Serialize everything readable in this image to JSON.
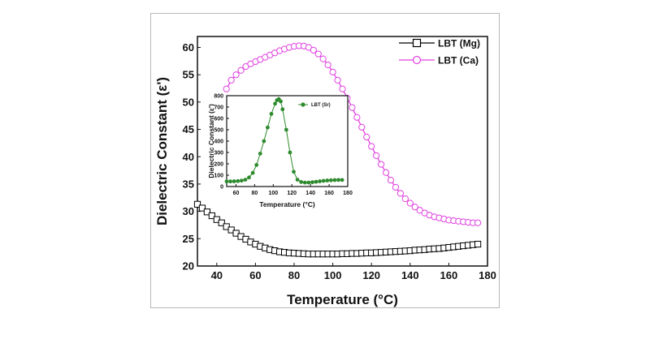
{
  "chart_data": [
    {
      "type": "line",
      "xlabel": "Temperature (°C)",
      "ylabel": "Dielectric Constant (ε')",
      "xlim": [
        30,
        180
      ],
      "ylim": [
        20,
        62
      ],
      "xticks": [
        "40",
        "60",
        "80",
        "100",
        "120",
        "140",
        "160",
        "180"
      ],
      "yticks": [
        "20",
        "25",
        "30",
        "35",
        "40",
        "45",
        "50",
        "55",
        "60"
      ],
      "legend_position": "top-right",
      "series": [
        {
          "name": "LBT (Mg)",
          "color": "#000000",
          "marker": "square",
          "x": [
            30,
            32.5,
            35,
            37.5,
            40,
            42.5,
            45,
            47.5,
            50,
            52.5,
            55,
            57.5,
            60,
            62.5,
            65,
            67.5,
            70,
            72.5,
            75,
            77.5,
            80,
            82.5,
            85,
            87.5,
            90,
            92.5,
            95,
            97.5,
            100,
            102.5,
            105,
            107.5,
            110,
            112.5,
            115,
            117.5,
            120,
            122.5,
            125,
            127.5,
            130,
            132.5,
            135,
            137.5,
            140,
            142.5,
            145,
            147.5,
            150,
            152.5,
            155,
            157.5,
            160,
            162.5,
            165,
            167.5,
            170,
            172.5,
            175
          ],
          "y": [
            31.3,
            30.6,
            29.9,
            29.2,
            28.5,
            27.9,
            27.2,
            26.6,
            26.0,
            25.4,
            24.9,
            24.4,
            24.0,
            23.6,
            23.3,
            23.0,
            22.8,
            22.6,
            22.5,
            22.4,
            22.35,
            22.3,
            22.25,
            22.2,
            22.2,
            22.2,
            22.2,
            22.2,
            22.2,
            22.2,
            22.25,
            22.25,
            22.3,
            22.3,
            22.35,
            22.4,
            22.4,
            22.45,
            22.5,
            22.55,
            22.6,
            22.65,
            22.7,
            22.75,
            22.8,
            22.9,
            22.95,
            23.0,
            23.1,
            23.15,
            23.2,
            23.3,
            23.4,
            23.5,
            23.6,
            23.7,
            23.8,
            23.9,
            24.0
          ]
        },
        {
          "name": "LBT (Ca)",
          "color": "#e040e0",
          "marker": "circle",
          "x": [
            45,
            47.5,
            50,
            52.5,
            55,
            57.5,
            60,
            62.5,
            65,
            67.5,
            70,
            72.5,
            75,
            77.5,
            80,
            82.5,
            85,
            87.5,
            90,
            92.5,
            95,
            97.5,
            100,
            102.5,
            105,
            107.5,
            110,
            112.5,
            115,
            117.5,
            120,
            122.5,
            125,
            127.5,
            130,
            132.5,
            135,
            137.5,
            140,
            142.5,
            145,
            147.5,
            150,
            152.5,
            155,
            157.5,
            160,
            162.5,
            165,
            167.5,
            170,
            172.5,
            175
          ],
          "y": [
            52.4,
            54.0,
            55.0,
            55.8,
            56.5,
            57.0,
            57.4,
            57.8,
            58.2,
            58.6,
            59.0,
            59.4,
            59.7,
            60.0,
            60.2,
            60.3,
            60.25,
            60.0,
            59.5,
            58.8,
            57.9,
            56.8,
            55.5,
            54.0,
            52.4,
            50.7,
            49.0,
            47.2,
            45.4,
            43.6,
            41.9,
            40.2,
            38.6,
            37.1,
            35.7,
            34.4,
            33.3,
            32.3,
            31.5,
            30.8,
            30.2,
            29.7,
            29.3,
            29.0,
            28.8,
            28.6,
            28.4,
            28.3,
            28.2,
            28.1,
            28.0,
            27.9,
            27.9
          ]
        }
      ]
    },
    {
      "type": "line",
      "position": "inset",
      "xlabel": "Temperature (°C)",
      "ylabel": "Dielectric Constant (ε')",
      "xlim": [
        50,
        180
      ],
      "ylim": [
        0,
        800
      ],
      "xticks": [
        "60",
        "80",
        "100",
        "120",
        "140",
        "160",
        "180"
      ],
      "yticks": [
        "0",
        "100",
        "200",
        "300",
        "400",
        "500",
        "600",
        "700",
        "800"
      ],
      "legend_position": "top-right",
      "series": [
        {
          "name": "LBT (Sr)",
          "color": "#2e8b2e",
          "marker": "circle",
          "x": [
            50,
            54,
            58,
            62,
            66,
            70,
            74,
            78,
            82,
            86,
            90,
            94,
            98,
            102,
            104,
            106,
            108,
            110,
            114,
            118,
            122,
            126,
            130,
            134,
            138,
            142,
            146,
            150,
            154,
            158,
            162,
            166,
            170,
            174
          ],
          "y": [
            45,
            45,
            46,
            48,
            52,
            60,
            80,
            120,
            190,
            290,
            400,
            520,
            640,
            730,
            760,
            770,
            750,
            680,
            500,
            300,
            130,
            60,
            40,
            35,
            35,
            38,
            42,
            46,
            50,
            53,
            55,
            57,
            58,
            58
          ]
        }
      ]
    }
  ]
}
